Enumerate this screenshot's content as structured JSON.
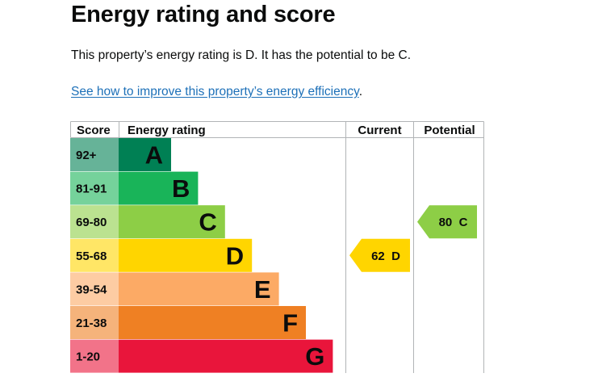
{
  "page": {
    "heading": "Energy rating and score",
    "summary": "This property’s energy rating is D. It has the potential to be C.",
    "link_text": "See how to improve this property’s energy efficiency",
    "link_suffix": "."
  },
  "chart_data": {
    "type": "bar",
    "headers": {
      "score": "Score",
      "rating": "Energy rating",
      "current": "Current",
      "potential": "Potential"
    },
    "bands": [
      {
        "letter": "A",
        "range": "92+",
        "color": "#008054",
        "score_color": "#66b398"
      },
      {
        "letter": "B",
        "range": "81-91",
        "color": "#19b459",
        "score_color": "#75d29b"
      },
      {
        "letter": "C",
        "range": "69-80",
        "color": "#8dce46",
        "score_color": "#bbe290"
      },
      {
        "letter": "D",
        "range": "55-68",
        "color": "#ffd500",
        "score_color": "#ffe666"
      },
      {
        "letter": "E",
        "range": "39-54",
        "color": "#fcaa65",
        "score_color": "#fdcca3"
      },
      {
        "letter": "F",
        "range": "21-38",
        "color": "#ef8023",
        "score_color": "#f5b37b"
      },
      {
        "letter": "G",
        "range": "1-20",
        "color": "#e9153b",
        "score_color": "#f27389"
      }
    ],
    "current": {
      "score": 62,
      "band": "D",
      "label": "62  D",
      "color": "#ffd500"
    },
    "potential": {
      "score": 80,
      "band": "C",
      "label": "80  C",
      "color": "#8dce46"
    }
  }
}
